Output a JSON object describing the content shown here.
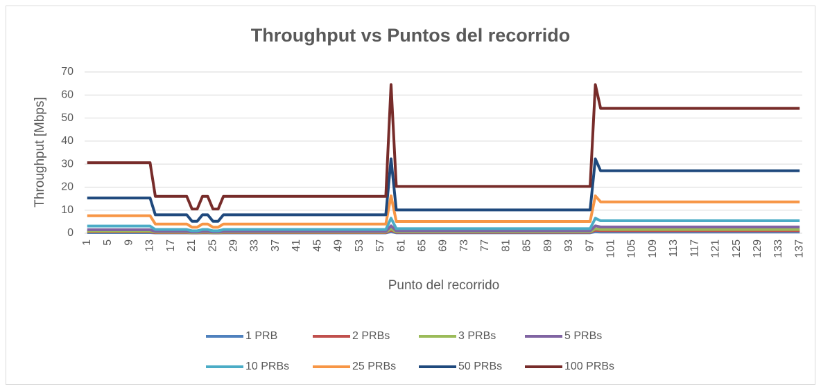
{
  "chart_data": {
    "type": "line",
    "title": "Throughput vs Puntos del recorrido",
    "x_label": "Punto del recorrido",
    "y_label": "Throughput [Mbps]",
    "categories": [
      "1",
      null,
      null,
      null,
      "5",
      null,
      null,
      null,
      "9",
      null,
      null,
      null,
      "13",
      null,
      null,
      null,
      "17",
      null,
      null,
      null,
      "21",
      null,
      null,
      null,
      "25",
      null,
      null,
      null,
      "29",
      null,
      null,
      null,
      "33",
      null,
      null,
      null,
      "37",
      null,
      null,
      null,
      "41",
      null,
      null,
      null,
      "45",
      null,
      null,
      null,
      "49",
      null,
      null,
      null,
      "53",
      null,
      null,
      null,
      "57",
      null,
      null,
      null,
      "61",
      null,
      null,
      null,
      "65",
      null,
      null,
      null,
      "69",
      null,
      null,
      null,
      "73",
      null,
      null,
      null,
      "77",
      null,
      null,
      null,
      "81",
      null,
      null,
      null,
      "85",
      null,
      null,
      null,
      "89",
      null,
      null,
      null,
      "93",
      null,
      null,
      null,
      "97",
      null,
      null,
      null,
      "101",
      null,
      null,
      null,
      "105",
      null,
      null,
      null,
      "109",
      null,
      null,
      null,
      "113",
      null,
      null,
      null,
      "117",
      null,
      null,
      null,
      "121",
      null,
      null,
      null,
      "125",
      null,
      null,
      null,
      "129",
      null,
      null,
      null,
      "133",
      null,
      null,
      null,
      "137"
    ],
    "ylim": [
      0,
      70
    ],
    "yticks": [
      0,
      10,
      20,
      30,
      40,
      50,
      60,
      70
    ],
    "grid": true,
    "legend": "bottom",
    "series": [
      {
        "name": "1 PRB",
        "color": "#4f81bd",
        "values": [
          0.3,
          0.3,
          0.3,
          0.3,
          0.3,
          0.3,
          0.3,
          0.3,
          0.3,
          0.3,
          0.3,
          0.3,
          0.3,
          0.16,
          0.16,
          0.16,
          0.16,
          0.16,
          0.16,
          0.16,
          0.1,
          0.1,
          0.16,
          0.16,
          0.1,
          0.1,
          0.16,
          0.16,
          0.16,
          0.16,
          0.16,
          0.16,
          0.16,
          0.16,
          0.16,
          0.16,
          0.16,
          0.16,
          0.16,
          0.16,
          0.16,
          0.16,
          0.16,
          0.16,
          0.16,
          0.16,
          0.16,
          0.16,
          0.16,
          0.16,
          0.16,
          0.16,
          0.16,
          0.16,
          0.16,
          0.16,
          0.16,
          0.16,
          0.65,
          0.2,
          0.2,
          0.2,
          0.2,
          0.2,
          0.2,
          0.2,
          0.2,
          0.2,
          0.2,
          0.2,
          0.2,
          0.2,
          0.2,
          0.2,
          0.2,
          0.2,
          0.2,
          0.2,
          0.2,
          0.2,
          0.2,
          0.2,
          0.2,
          0.2,
          0.2,
          0.2,
          0.2,
          0.2,
          0.2,
          0.2,
          0.2,
          0.2,
          0.2,
          0.2,
          0.2,
          0.2,
          0.2,
          0.65,
          0.54,
          0.54,
          0.54,
          0.54,
          0.54,
          0.54,
          0.54,
          0.54,
          0.54,
          0.54,
          0.54,
          0.54,
          0.54,
          0.54,
          0.54,
          0.54,
          0.54,
          0.54,
          0.54,
          0.54,
          0.54,
          0.54,
          0.54,
          0.54,
          0.54,
          0.54,
          0.54,
          0.54,
          0.54,
          0.54,
          0.54,
          0.54,
          0.54,
          0.54,
          0.54,
          0.54,
          0.54,
          0.54,
          0.54
        ]
      },
      {
        "name": "2 PRBs",
        "color": "#c0504d",
        "values": [
          0.6,
          0.6,
          0.6,
          0.6,
          0.6,
          0.6,
          0.6,
          0.6,
          0.6,
          0.6,
          0.6,
          0.6,
          0.6,
          0.3,
          0.3,
          0.3,
          0.3,
          0.3,
          0.3,
          0.3,
          0.2,
          0.2,
          0.3,
          0.3,
          0.2,
          0.2,
          0.3,
          0.3,
          0.3,
          0.3,
          0.3,
          0.3,
          0.3,
          0.3,
          0.3,
          0.3,
          0.3,
          0.3,
          0.3,
          0.3,
          0.3,
          0.3,
          0.3,
          0.3,
          0.3,
          0.3,
          0.3,
          0.3,
          0.3,
          0.3,
          0.3,
          0.3,
          0.3,
          0.3,
          0.3,
          0.3,
          0.3,
          0.3,
          1.3,
          0.4,
          0.4,
          0.4,
          0.4,
          0.4,
          0.4,
          0.4,
          0.4,
          0.4,
          0.4,
          0.4,
          0.4,
          0.4,
          0.4,
          0.4,
          0.4,
          0.4,
          0.4,
          0.4,
          0.4,
          0.4,
          0.4,
          0.4,
          0.4,
          0.4,
          0.4,
          0.4,
          0.4,
          0.4,
          0.4,
          0.4,
          0.4,
          0.4,
          0.4,
          0.4,
          0.4,
          0.4,
          0.4,
          1.3,
          1.1,
          1.1,
          1.1,
          1.1,
          1.1,
          1.1,
          1.1,
          1.1,
          1.1,
          1.1,
          1.1,
          1.1,
          1.1,
          1.1,
          1.1,
          1.1,
          1.1,
          1.1,
          1.1,
          1.1,
          1.1,
          1.1,
          1.1,
          1.1,
          1.1,
          1.1,
          1.1,
          1.1,
          1.1,
          1.1,
          1.1,
          1.1,
          1.1,
          1.1,
          1.1,
          1.1,
          1.1,
          1.1,
          1.1
        ]
      },
      {
        "name": "3 PRBs",
        "color": "#9bbb59",
        "values": [
          0.9,
          0.9,
          0.9,
          0.9,
          0.9,
          0.9,
          0.9,
          0.9,
          0.9,
          0.9,
          0.9,
          0.9,
          0.9,
          0.5,
          0.5,
          0.5,
          0.5,
          0.5,
          0.5,
          0.5,
          0.3,
          0.3,
          0.5,
          0.5,
          0.3,
          0.3,
          0.5,
          0.5,
          0.5,
          0.5,
          0.5,
          0.5,
          0.5,
          0.5,
          0.5,
          0.5,
          0.5,
          0.5,
          0.5,
          0.5,
          0.5,
          0.5,
          0.5,
          0.5,
          0.5,
          0.5,
          0.5,
          0.5,
          0.5,
          0.5,
          0.5,
          0.5,
          0.5,
          0.5,
          0.5,
          0.5,
          0.5,
          0.5,
          1.9,
          0.6,
          0.6,
          0.6,
          0.6,
          0.6,
          0.6,
          0.6,
          0.6,
          0.6,
          0.6,
          0.6,
          0.6,
          0.6,
          0.6,
          0.6,
          0.6,
          0.6,
          0.6,
          0.6,
          0.6,
          0.6,
          0.6,
          0.6,
          0.6,
          0.6,
          0.6,
          0.6,
          0.6,
          0.6,
          0.6,
          0.6,
          0.6,
          0.6,
          0.6,
          0.6,
          0.6,
          0.6,
          0.6,
          1.9,
          1.6,
          1.6,
          1.6,
          1.6,
          1.6,
          1.6,
          1.6,
          1.6,
          1.6,
          1.6,
          1.6,
          1.6,
          1.6,
          1.6,
          1.6,
          1.6,
          1.6,
          1.6,
          1.6,
          1.6,
          1.6,
          1.6,
          1.6,
          1.6,
          1.6,
          1.6,
          1.6,
          1.6,
          1.6,
          1.6,
          1.6,
          1.6,
          1.6,
          1.6,
          1.6,
          1.6,
          1.6,
          1.6,
          1.6
        ]
      },
      {
        "name": "5 PRBs",
        "color": "#8064a2",
        "values": [
          1.5,
          1.5,
          1.5,
          1.5,
          1.5,
          1.5,
          1.5,
          1.5,
          1.5,
          1.5,
          1.5,
          1.5,
          1.5,
          0.8,
          0.8,
          0.8,
          0.8,
          0.8,
          0.8,
          0.8,
          0.5,
          0.5,
          0.8,
          0.8,
          0.5,
          0.5,
          0.8,
          0.8,
          0.8,
          0.8,
          0.8,
          0.8,
          0.8,
          0.8,
          0.8,
          0.8,
          0.8,
          0.8,
          0.8,
          0.8,
          0.8,
          0.8,
          0.8,
          0.8,
          0.8,
          0.8,
          0.8,
          0.8,
          0.8,
          0.8,
          0.8,
          0.8,
          0.8,
          0.8,
          0.8,
          0.8,
          0.8,
          0.8,
          3.2,
          1,
          1,
          1,
          1,
          1,
          1,
          1,
          1,
          1,
          1,
          1,
          1,
          1,
          1,
          1,
          1,
          1,
          1,
          1,
          1,
          1,
          1,
          1,
          1,
          1,
          1,
          1,
          1,
          1,
          1,
          1,
          1,
          1,
          1,
          1,
          1,
          1,
          1,
          3.2,
          2.7,
          2.7,
          2.7,
          2.7,
          2.7,
          2.7,
          2.7,
          2.7,
          2.7,
          2.7,
          2.7,
          2.7,
          2.7,
          2.7,
          2.7,
          2.7,
          2.7,
          2.7,
          2.7,
          2.7,
          2.7,
          2.7,
          2.7,
          2.7,
          2.7,
          2.7,
          2.7,
          2.7,
          2.7,
          2.7,
          2.7,
          2.7,
          2.7,
          2.7,
          2.7,
          2.7,
          2.7,
          2.7,
          2.7
        ]
      },
      {
        "name": "10 PRBs",
        "color": "#4bacc6",
        "values": [
          3.1,
          3.1,
          3.1,
          3.1,
          3.1,
          3.1,
          3.1,
          3.1,
          3.1,
          3.1,
          3.1,
          3.1,
          3.1,
          1.6,
          1.6,
          1.6,
          1.6,
          1.6,
          1.6,
          1.6,
          1.05,
          1.05,
          1.6,
          1.6,
          1.05,
          1.05,
          1.6,
          1.6,
          1.6,
          1.6,
          1.6,
          1.6,
          1.6,
          1.6,
          1.6,
          1.6,
          1.6,
          1.6,
          1.6,
          1.6,
          1.6,
          1.6,
          1.6,
          1.6,
          1.6,
          1.6,
          1.6,
          1.6,
          1.6,
          1.6,
          1.6,
          1.6,
          1.6,
          1.6,
          1.6,
          1.6,
          1.6,
          1.6,
          6.5,
          2,
          2,
          2,
          2,
          2,
          2,
          2,
          2,
          2,
          2,
          2,
          2,
          2,
          2,
          2,
          2,
          2,
          2,
          2,
          2,
          2,
          2,
          2,
          2,
          2,
          2,
          2,
          2,
          2,
          2,
          2,
          2,
          2,
          2,
          2,
          2,
          2,
          2,
          6.5,
          5.4,
          5.4,
          5.4,
          5.4,
          5.4,
          5.4,
          5.4,
          5.4,
          5.4,
          5.4,
          5.4,
          5.4,
          5.4,
          5.4,
          5.4,
          5.4,
          5.4,
          5.4,
          5.4,
          5.4,
          5.4,
          5.4,
          5.4,
          5.4,
          5.4,
          5.4,
          5.4,
          5.4,
          5.4,
          5.4,
          5.4,
          5.4,
          5.4,
          5.4,
          5.4,
          5.4,
          5.4,
          5.4,
          5.4
        ]
      },
      {
        "name": "25 PRBs",
        "color": "#f79646",
        "values": [
          7.6,
          7.6,
          7.6,
          7.6,
          7.6,
          7.6,
          7.6,
          7.6,
          7.6,
          7.6,
          7.6,
          7.6,
          7.6,
          4,
          4,
          4,
          4,
          4,
          4,
          4,
          2.6,
          2.6,
          4,
          4,
          2.6,
          2.6,
          4,
          4,
          4,
          4,
          4,
          4,
          4,
          4,
          4,
          4,
          4,
          4,
          4,
          4,
          4,
          4,
          4,
          4,
          4,
          4,
          4,
          4,
          4,
          4,
          4,
          4,
          4,
          4,
          4,
          4,
          4,
          4,
          16.2,
          5.1,
          5.1,
          5.1,
          5.1,
          5.1,
          5.1,
          5.1,
          5.1,
          5.1,
          5.1,
          5.1,
          5.1,
          5.1,
          5.1,
          5.1,
          5.1,
          5.1,
          5.1,
          5.1,
          5.1,
          5.1,
          5.1,
          5.1,
          5.1,
          5.1,
          5.1,
          5.1,
          5.1,
          5.1,
          5.1,
          5.1,
          5.1,
          5.1,
          5.1,
          5.1,
          5.1,
          5.1,
          5.1,
          16.2,
          13.6,
          13.6,
          13.6,
          13.6,
          13.6,
          13.6,
          13.6,
          13.6,
          13.6,
          13.6,
          13.6,
          13.6,
          13.6,
          13.6,
          13.6,
          13.6,
          13.6,
          13.6,
          13.6,
          13.6,
          13.6,
          13.6,
          13.6,
          13.6,
          13.6,
          13.6,
          13.6,
          13.6,
          13.6,
          13.6,
          13.6,
          13.6,
          13.6,
          13.6,
          13.6,
          13.6,
          13.6,
          13.6,
          13.6
        ]
      },
      {
        "name": "50 PRBs",
        "color": "#1f497d",
        "values": [
          15.3,
          15.3,
          15.3,
          15.3,
          15.3,
          15.3,
          15.3,
          15.3,
          15.3,
          15.3,
          15.3,
          15.3,
          15.3,
          8,
          8,
          8,
          8,
          8,
          8,
          8,
          5.2,
          5.2,
          8,
          8,
          5.2,
          5.2,
          8,
          8,
          8,
          8,
          8,
          8,
          8,
          8,
          8,
          8,
          8,
          8,
          8,
          8,
          8,
          8,
          8,
          8,
          8,
          8,
          8,
          8,
          8,
          8,
          8,
          8,
          8,
          8,
          8,
          8,
          8,
          8,
          32.3,
          10.1,
          10.1,
          10.1,
          10.1,
          10.1,
          10.1,
          10.1,
          10.1,
          10.1,
          10.1,
          10.1,
          10.1,
          10.1,
          10.1,
          10.1,
          10.1,
          10.1,
          10.1,
          10.1,
          10.1,
          10.1,
          10.1,
          10.1,
          10.1,
          10.1,
          10.1,
          10.1,
          10.1,
          10.1,
          10.1,
          10.1,
          10.1,
          10.1,
          10.1,
          10.1,
          10.1,
          10.1,
          10.1,
          32.3,
          27.1,
          27.1,
          27.1,
          27.1,
          27.1,
          27.1,
          27.1,
          27.1,
          27.1,
          27.1,
          27.1,
          27.1,
          27.1,
          27.1,
          27.1,
          27.1,
          27.1,
          27.1,
          27.1,
          27.1,
          27.1,
          27.1,
          27.1,
          27.1,
          27.1,
          27.1,
          27.1,
          27.1,
          27.1,
          27.1,
          27.1,
          27.1,
          27.1,
          27.1,
          27.1,
          27.1,
          27.1,
          27.1,
          27.1
        ]
      },
      {
        "name": "100 PRBs",
        "color": "#772c2a",
        "values": [
          30.6,
          30.6,
          30.6,
          30.6,
          30.6,
          30.6,
          30.6,
          30.6,
          30.6,
          30.6,
          30.6,
          30.6,
          30.6,
          16,
          16,
          16,
          16,
          16,
          16,
          16,
          10.5,
          10.5,
          16,
          16,
          10.5,
          10.5,
          16,
          16,
          16,
          16,
          16,
          16,
          16,
          16,
          16,
          16,
          16,
          16,
          16,
          16,
          16,
          16,
          16,
          16,
          16,
          16,
          16,
          16,
          16,
          16,
          16,
          16,
          16,
          16,
          16,
          16,
          16,
          16,
          64.5,
          20.3,
          20.3,
          20.3,
          20.3,
          20.3,
          20.3,
          20.3,
          20.3,
          20.3,
          20.3,
          20.3,
          20.3,
          20.3,
          20.3,
          20.3,
          20.3,
          20.3,
          20.3,
          20.3,
          20.3,
          20.3,
          20.3,
          20.3,
          20.3,
          20.3,
          20.3,
          20.3,
          20.3,
          20.3,
          20.3,
          20.3,
          20.3,
          20.3,
          20.3,
          20.3,
          20.3,
          20.3,
          20.3,
          64.5,
          54.2,
          54.2,
          54.2,
          54.2,
          54.2,
          54.2,
          54.2,
          54.2,
          54.2,
          54.2,
          54.2,
          54.2,
          54.2,
          54.2,
          54.2,
          54.2,
          54.2,
          54.2,
          54.2,
          54.2,
          54.2,
          54.2,
          54.2,
          54.2,
          54.2,
          54.2,
          54.2,
          54.2,
          54.2,
          54.2,
          54.2,
          54.2,
          54.2,
          54.2,
          54.2,
          54.2,
          54.2,
          54.2,
          54.2
        ]
      }
    ]
  }
}
